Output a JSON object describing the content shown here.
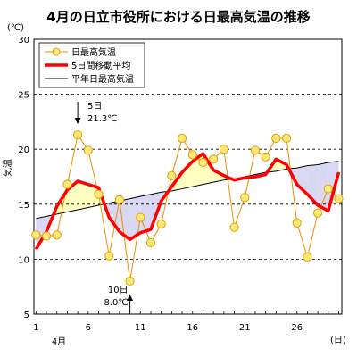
{
  "chart_data": {
    "type": "line",
    "title": "4月の日立市役所における日最高気温の推移",
    "y_unit": "(℃)",
    "ylabel": "気温",
    "x_unit": "(日)",
    "month_label": "4月",
    "ylim": [
      5,
      30
    ],
    "yticks": [
      5,
      10,
      15,
      20,
      25,
      30
    ],
    "xlim": [
      1,
      30
    ],
    "xticks": [
      1,
      6,
      11,
      16,
      21,
      26
    ],
    "grid": "horizontal dashed",
    "legend_position": "top-left",
    "x": [
      1,
      2,
      3,
      4,
      5,
      6,
      7,
      8,
      9,
      10,
      11,
      12,
      13,
      14,
      15,
      16,
      17,
      18,
      19,
      20,
      21,
      22,
      23,
      24,
      25,
      26,
      27,
      28,
      29,
      30
    ],
    "series": [
      {
        "name": "日最高気温",
        "style": "orange-line-yellow-circles",
        "values": [
          12.2,
          12.1,
          12.2,
          16.8,
          21.3,
          19.9,
          15.9,
          10.3,
          15.4,
          8.0,
          13.8,
          11.5,
          13.2,
          17.6,
          21.0,
          19.5,
          18.8,
          19.1,
          20.0,
          12.9,
          15.6,
          19.9,
          19.3,
          21.0,
          21.0,
          13.3,
          10.2,
          14.2,
          16.4,
          15.5
        ]
      },
      {
        "name": "5日間移動平均",
        "style": "thick-red-line",
        "values": [
          10.9,
          12.5,
          14.8,
          16.3,
          17.1,
          16.8,
          16.5,
          13.8,
          12.5,
          11.8,
          12.4,
          12.7,
          15.3,
          16.6,
          17.9,
          18.9,
          19.6,
          18.1,
          17.6,
          17.2,
          17.4,
          17.5,
          17.7,
          19.1,
          18.6,
          16.8,
          15.9,
          14.9,
          14.4,
          17.9
        ]
      },
      {
        "name": "平年日最高気温",
        "style": "thin-black-line",
        "values": [
          13.7,
          13.9,
          14.1,
          14.3,
          14.5,
          14.7,
          14.9,
          15.1,
          15.3,
          15.5,
          15.7,
          15.9,
          16.1,
          16.2,
          16.4,
          16.6,
          16.8,
          17.0,
          17.2,
          17.3,
          17.5,
          17.7,
          17.9,
          18.0,
          18.2,
          18.3,
          18.5,
          18.6,
          18.8,
          18.9
        ]
      }
    ],
    "fill_above_normal_color": "#ffffc0",
    "fill_below_normal_color": "#d8d8f4",
    "colors": {
      "daily_line": "#f08c00",
      "daily_marker_fill": "#ffe87a",
      "daily_marker_stroke": "#e0a000",
      "moving_avg": "#ff0000",
      "normal": "#000000"
    },
    "annotations": [
      {
        "day_label": "5日",
        "value_label": "21.3℃",
        "day": 5,
        "arrow": "down"
      },
      {
        "day_label": "10日",
        "value_label": "8.0℃",
        "day": 10,
        "arrow": "up"
      }
    ]
  }
}
